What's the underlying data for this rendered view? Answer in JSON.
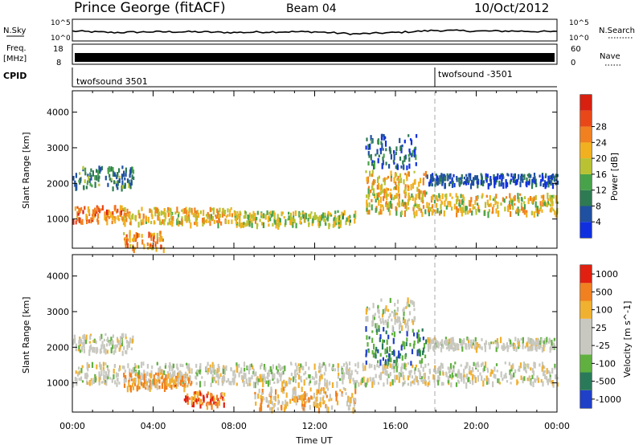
{
  "header": {
    "station": "Prince George (fitACF)",
    "beam": "Beam 04",
    "date": "10/Oct/2012"
  },
  "left_labels": {
    "nsky": "N.Sky",
    "freq_line1": "Freq.",
    "freq_line2": "[MHz]",
    "cpid": "CPID"
  },
  "right_labels": {
    "nsearch": "N.Search",
    "nave": "Nave"
  },
  "cpid_values": {
    "first": "twofsound 3501",
    "second": "twofsound -3501"
  },
  "chart_data": [
    {
      "type": "line",
      "name": "noise",
      "left_ticks": [
        "10^5",
        "10^0"
      ],
      "right_ticks": [
        "10^5",
        "10^0"
      ],
      "x": [
        0,
        2,
        4,
        6,
        8,
        10,
        12,
        14,
        16,
        18,
        20,
        22,
        24
      ],
      "y_relative": [
        0.35,
        0.25,
        0.3,
        0.3,
        0.25,
        0.3,
        0.3,
        0.15,
        0.25,
        0.4,
        0.35,
        0.35,
        0.3
      ]
    },
    {
      "type": "line",
      "name": "frequency",
      "left_ticks": [
        "18",
        "8"
      ],
      "right_ticks": [
        "60",
        "0"
      ],
      "note": "dense band"
    },
    {
      "type": "heatmap",
      "name": "power",
      "title": "",
      "xlabel": "",
      "ylabel": "Slant Range [km]",
      "ylim": [
        180,
        4600
      ],
      "yticks": [
        1000,
        2000,
        3000,
        4000
      ],
      "colorbar_label": "Power [dB]",
      "colorbar_ticks": [
        "4",
        "8",
        "12",
        "16",
        "20",
        "24",
        "28"
      ],
      "colors": [
        "#1030e0",
        "#2050a0",
        "#2e7a52",
        "#48a24a",
        "#b8c232",
        "#f0b020",
        "#f08020",
        "#e84818",
        "#d82010"
      ],
      "regions": [
        {
          "t0": 0.0,
          "t1": 2.5,
          "r0": 950,
          "r1": 1400,
          "level": 0.75
        },
        {
          "t0": 2.5,
          "t1": 8.0,
          "r0": 900,
          "r1": 1350,
          "level": 0.6
        },
        {
          "t0": 8.0,
          "t1": 14.0,
          "r0": 850,
          "r1": 1250,
          "level": 0.5
        },
        {
          "t0": 14.5,
          "t1": 24.0,
          "r0": 1200,
          "r1": 1750,
          "level": 0.55
        },
        {
          "t0": 0.0,
          "t1": 3.0,
          "r0": 1900,
          "r1": 2500,
          "level": 0.3
        },
        {
          "t0": 14.5,
          "t1": 17.5,
          "r0": 1700,
          "r1": 2400,
          "level": 0.6
        },
        {
          "t0": 17.5,
          "t1": 24.0,
          "r0": 2000,
          "r1": 2300,
          "level": 0.15
        },
        {
          "t0": 2.5,
          "t1": 4.5,
          "r0": 200,
          "r1": 700,
          "level": 0.7
        },
        {
          "t0": 14.5,
          "t1": 17.0,
          "r0": 2500,
          "r1": 3400,
          "level": 0.2
        }
      ]
    },
    {
      "type": "heatmap",
      "name": "velocity",
      "title": "",
      "xlabel": "Time UT",
      "ylabel": "Slant Range [km]",
      "ylim": [
        180,
        4600
      ],
      "yticks": [
        1000,
        2000,
        3000,
        4000
      ],
      "xticks": [
        "00:00",
        "04:00",
        "08:00",
        "12:00",
        "16:00",
        "20:00",
        "00:00"
      ],
      "colorbar_label": "Velocity [m s^-1]",
      "colorbar_ticks": [
        "1000",
        "500",
        "100",
        "25",
        "-25",
        "-100",
        "-500",
        "-1000"
      ],
      "colors": [
        "#2040c8",
        "#2a7a5a",
        "#60b040",
        "#c8c8c0",
        "#c8c8c0",
        "#f0b030",
        "#f08020",
        "#e02010"
      ],
      "regions": [
        {
          "t0": 0.0,
          "t1": 24.0,
          "r0": 1000,
          "r1": 1600,
          "level": 0.5
        },
        {
          "t0": 0.0,
          "t1": 3.0,
          "r0": 1900,
          "r1": 2400,
          "level": 0.5
        },
        {
          "t0": 2.5,
          "t1": 6.0,
          "r0": 900,
          "r1": 1300,
          "level": 0.72
        },
        {
          "t0": 5.5,
          "t1": 7.5,
          "r0": 400,
          "r1": 800,
          "level": 0.85
        },
        {
          "t0": 14.5,
          "t1": 17.5,
          "r0": 1600,
          "r1": 2600,
          "level": 0.2
        },
        {
          "t0": 14.5,
          "t1": 17.0,
          "r0": 2600,
          "r1": 3400,
          "level": 0.5
        },
        {
          "t0": 17.5,
          "t1": 24.0,
          "r0": 2000,
          "r1": 2300,
          "level": 0.5
        },
        {
          "t0": 9.0,
          "t1": 14.0,
          "r0": 300,
          "r1": 900,
          "level": 0.65
        }
      ]
    }
  ]
}
